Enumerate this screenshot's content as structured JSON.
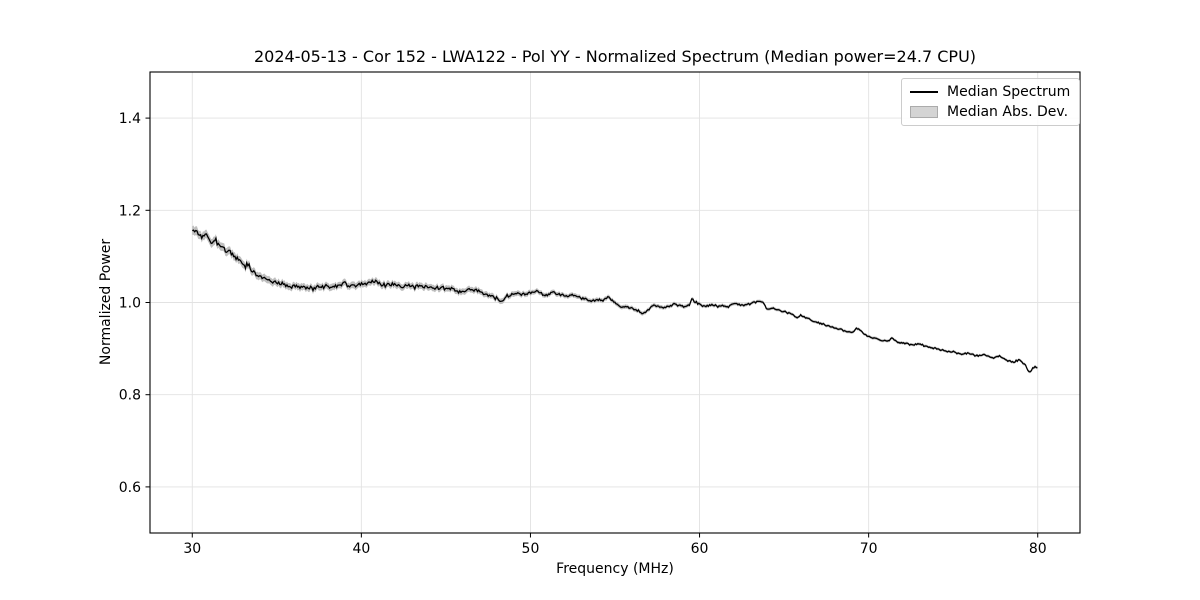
{
  "figure": {
    "title": "2024-05-13 - Cor 152 - LWA122 - Pol YY - Normalized Spectrum (Median power=24.7 CPU)"
  },
  "chart_data": {
    "type": "line",
    "title": "2024-05-13 - Cor 152 - LWA122 - Pol YY - Normalized Spectrum (Median power=24.7 CPU)",
    "xlabel": "Frequency (MHz)",
    "ylabel": "Normalized Power",
    "xlim": [
      27.5,
      82.5
    ],
    "ylim": [
      0.5,
      1.5
    ],
    "grid": true,
    "legend_position": "upper-right",
    "xticks": {
      "values": [
        30,
        40,
        50,
        60,
        70,
        80
      ],
      "labels": [
        "30",
        "40",
        "50",
        "60",
        "70",
        "80"
      ]
    },
    "yticks": {
      "values": [
        0.6,
        0.8,
        1.0,
        1.2,
        1.4
      ],
      "labels": [
        "0.6",
        "0.8",
        "1.0",
        "1.2",
        "1.4"
      ]
    },
    "legend": {
      "entries": [
        {
          "label": "Median Spectrum",
          "type": "line",
          "color": "#000000"
        },
        {
          "label": "Median Abs. Dev.",
          "type": "patch",
          "color": "#d4d4d4"
        }
      ]
    },
    "colors": {
      "line": "#000000",
      "band": "#bfbfbf",
      "grid": "#e2e2e2",
      "frame": "#000000",
      "tick": "#000000",
      "background": "#ffffff"
    },
    "series": [
      {
        "name": "Median Spectrum",
        "x": [
          30.0,
          30.15,
          30.3,
          30.45,
          30.6,
          30.75,
          30.9,
          31.05,
          31.2,
          31.4,
          31.6,
          31.8,
          32.0,
          32.2,
          32.4,
          32.6,
          32.8,
          33.0,
          33.15,
          33.3,
          33.45,
          33.7,
          33.9,
          34.1,
          34.4,
          34.7,
          35.1,
          35.5,
          35.9,
          36.3,
          36.7,
          37.1,
          37.5,
          37.9,
          38.3,
          38.7,
          38.95,
          39.15,
          39.4,
          39.7,
          40.0,
          40.3,
          40.6,
          40.9,
          41.15,
          41.4,
          41.7,
          42.0,
          42.3,
          42.6,
          42.9,
          43.2,
          43.5,
          43.8,
          44.1,
          44.4,
          44.7,
          45.0,
          45.3,
          45.6,
          45.9,
          46.2,
          46.5,
          46.8,
          47.1,
          47.4,
          47.7,
          48.0,
          48.3,
          48.6,
          48.9,
          49.2,
          49.5,
          49.8,
          50.1,
          50.4,
          50.7,
          51.0,
          51.3,
          51.6,
          51.9,
          52.2,
          52.5,
          52.8,
          53.1,
          53.4,
          53.7,
          54.0,
          54.3,
          54.6,
          54.9,
          55.2,
          55.5,
          55.8,
          56.1,
          56.4,
          56.7,
          57.0,
          57.3,
          57.6,
          57.9,
          58.2,
          58.5,
          58.8,
          59.1,
          59.4,
          59.55,
          59.9,
          60.2,
          60.5,
          60.8,
          61.1,
          61.4,
          61.7,
          62.0,
          62.3,
          62.6,
          62.9,
          63.2,
          63.5,
          63.75,
          64.0,
          64.3,
          64.6,
          64.9,
          65.2,
          65.5,
          65.7,
          66.0,
          66.3,
          66.6,
          66.9,
          67.2,
          67.5,
          67.8,
          68.1,
          68.4,
          68.7,
          69.0,
          69.3,
          69.6,
          69.9,
          70.2,
          70.5,
          70.8,
          71.1,
          71.4,
          71.7,
          72.0,
          72.3,
          72.6,
          72.9,
          73.2,
          73.5,
          73.8,
          74.1,
          74.4,
          74.7,
          75.0,
          75.3,
          75.6,
          75.9,
          76.2,
          76.5,
          76.8,
          77.1,
          77.4,
          77.7,
          78.0,
          78.3,
          78.6,
          78.9,
          79.1,
          79.3,
          79.5,
          79.7,
          79.85,
          80.0
        ],
        "y": [
          1.158,
          1.152,
          1.155,
          1.148,
          1.143,
          1.147,
          1.14,
          1.136,
          1.13,
          1.133,
          1.126,
          1.118,
          1.113,
          1.108,
          1.103,
          1.097,
          1.091,
          1.084,
          1.079,
          1.086,
          1.074,
          1.062,
          1.057,
          1.054,
          1.049,
          1.046,
          1.042,
          1.039,
          1.036,
          1.034,
          1.032,
          1.031,
          1.032,
          1.034,
          1.035,
          1.037,
          1.045,
          1.037,
          1.036,
          1.038,
          1.04,
          1.041,
          1.044,
          1.047,
          1.04,
          1.037,
          1.039,
          1.041,
          1.035,
          1.037,
          1.038,
          1.033,
          1.036,
          1.033,
          1.036,
          1.031,
          1.033,
          1.03,
          1.029,
          1.027,
          1.023,
          1.026,
          1.029,
          1.025,
          1.021,
          1.019,
          1.014,
          1.009,
          1.004,
          1.014,
          1.019,
          1.021,
          1.017,
          1.019,
          1.022,
          1.025,
          1.018,
          1.015,
          1.022,
          1.019,
          1.016,
          1.013,
          1.017,
          1.012,
          1.009,
          1.006,
          1.004,
          1.005,
          1.003,
          1.013,
          1.001,
          0.994,
          0.991,
          0.989,
          0.986,
          0.981,
          0.977,
          0.984,
          0.994,
          0.99,
          0.988,
          0.991,
          0.997,
          0.993,
          0.99,
          0.996,
          1.007,
          0.998,
          0.99,
          0.993,
          0.996,
          0.99,
          0.994,
          0.99,
          0.999,
          0.996,
          0.993,
          0.996,
          0.999,
          1.003,
          1.0,
          0.985,
          0.988,
          0.985,
          0.981,
          0.978,
          0.975,
          0.966,
          0.972,
          0.968,
          0.962,
          0.957,
          0.954,
          0.951,
          0.947,
          0.944,
          0.941,
          0.937,
          0.934,
          0.944,
          0.936,
          0.928,
          0.924,
          0.921,
          0.918,
          0.916,
          0.922,
          0.914,
          0.912,
          0.91,
          0.907,
          0.911,
          0.907,
          0.904,
          0.901,
          0.899,
          0.897,
          0.894,
          0.893,
          0.89,
          0.888,
          0.891,
          0.886,
          0.884,
          0.887,
          0.882,
          0.88,
          0.884,
          0.877,
          0.873,
          0.871,
          0.876,
          0.869,
          0.862,
          0.847,
          0.857,
          0.861,
          0.856
        ]
      },
      {
        "name": "Median Abs. Dev.",
        "x": [
          30,
          33,
          36,
          40,
          44,
          47,
          50,
          54,
          58,
          62,
          66,
          70,
          74,
          78,
          80
        ],
        "half_width": [
          0.009,
          0.008,
          0.007,
          0.0068,
          0.0065,
          0.006,
          0.005,
          0.0045,
          0.004,
          0.0035,
          0.003,
          0.003,
          0.0028,
          0.0028,
          0.003
        ]
      }
    ],
    "noise": {
      "amplitude_scale": 0.55,
      "sample_step_mhz": 0.07
    }
  }
}
